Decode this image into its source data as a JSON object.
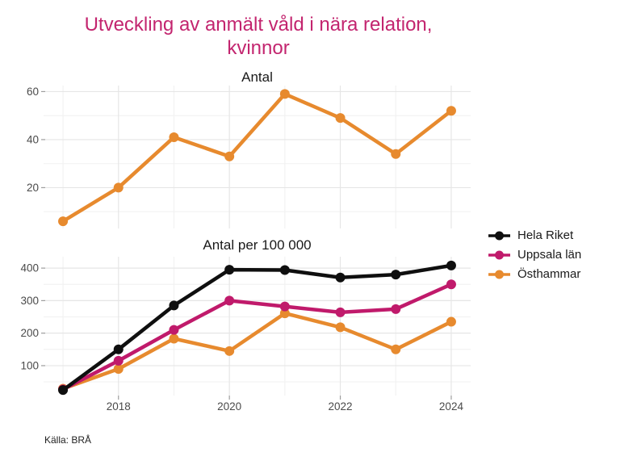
{
  "title": {
    "text": "Utveckling av anmält våld i nära relation,\nkvinnor",
    "color": "#C3256F"
  },
  "caption": {
    "text": "Källa: BRÅ"
  },
  "legend": {
    "items": [
      {
        "label": "Hela Riket",
        "color": "#0f0f0f"
      },
      {
        "label": "Uppsala län",
        "color": "#C01A6B"
      },
      {
        "label": "Östhammar",
        "color": "#E78A2E"
      }
    ]
  },
  "style": {
    "grid_major": "#e6e6e6",
    "grid_minor": "#f2f2f2",
    "tick_color": "#9e9e9e",
    "axis_text_color": "#4a4a4a"
  },
  "chart_data": [
    {
      "type": "line",
      "panel_title": "Antal",
      "x": [
        2017,
        2018,
        2019,
        2020,
        2021,
        2022,
        2023,
        2024
      ],
      "x_ticks": [],
      "x_minor": [
        2017,
        2019,
        2021,
        2023
      ],
      "x_major": [
        2018,
        2020,
        2022,
        2024
      ],
      "y_ticks": [
        {
          "value": 20,
          "label": "20"
        },
        {
          "value": 40,
          "label": "40"
        },
        {
          "value": 60,
          "label": "60"
        }
      ],
      "y_minor": [
        10,
        30,
        50
      ],
      "ylim": [
        3,
        62.5
      ],
      "series": [
        {
          "name": "Östhammar",
          "color": "#E78A2E",
          "values": [
            6,
            20,
            41,
            33,
            59,
            49,
            34,
            52
          ]
        }
      ]
    },
    {
      "type": "line",
      "panel_title": "Antal per 100 000",
      "x": [
        2017,
        2018,
        2019,
        2020,
        2021,
        2022,
        2023,
        2024
      ],
      "x_ticks": [
        {
          "year": 2018,
          "label": "2018"
        },
        {
          "year": 2020,
          "label": "2020"
        },
        {
          "year": 2022,
          "label": "2022"
        },
        {
          "year": 2024,
          "label": "2024"
        }
      ],
      "x_minor": [
        2017,
        2019,
        2021,
        2023
      ],
      "x_major": [
        2018,
        2020,
        2022,
        2024
      ],
      "y_ticks": [
        {
          "value": 100,
          "label": "100"
        },
        {
          "value": 200,
          "label": "200"
        },
        {
          "value": 300,
          "label": "300"
        },
        {
          "value": 400,
          "label": "400"
        }
      ],
      "y_minor": [
        50,
        150,
        250,
        350
      ],
      "ylim": [
        8,
        435
      ],
      "series": [
        {
          "name": "Hela Riket",
          "color": "#0f0f0f",
          "values": [
            25,
            150,
            285,
            395,
            394,
            371,
            380,
            408
          ]
        },
        {
          "name": "Uppsala län",
          "color": "#C01A6B",
          "values": [
            27,
            115,
            210,
            300,
            282,
            264,
            274,
            350
          ]
        },
        {
          "name": "Östhammar",
          "color": "#E78A2E",
          "values": [
            29,
            90,
            183,
            145,
            261,
            218,
            150,
            235
          ]
        }
      ]
    }
  ]
}
